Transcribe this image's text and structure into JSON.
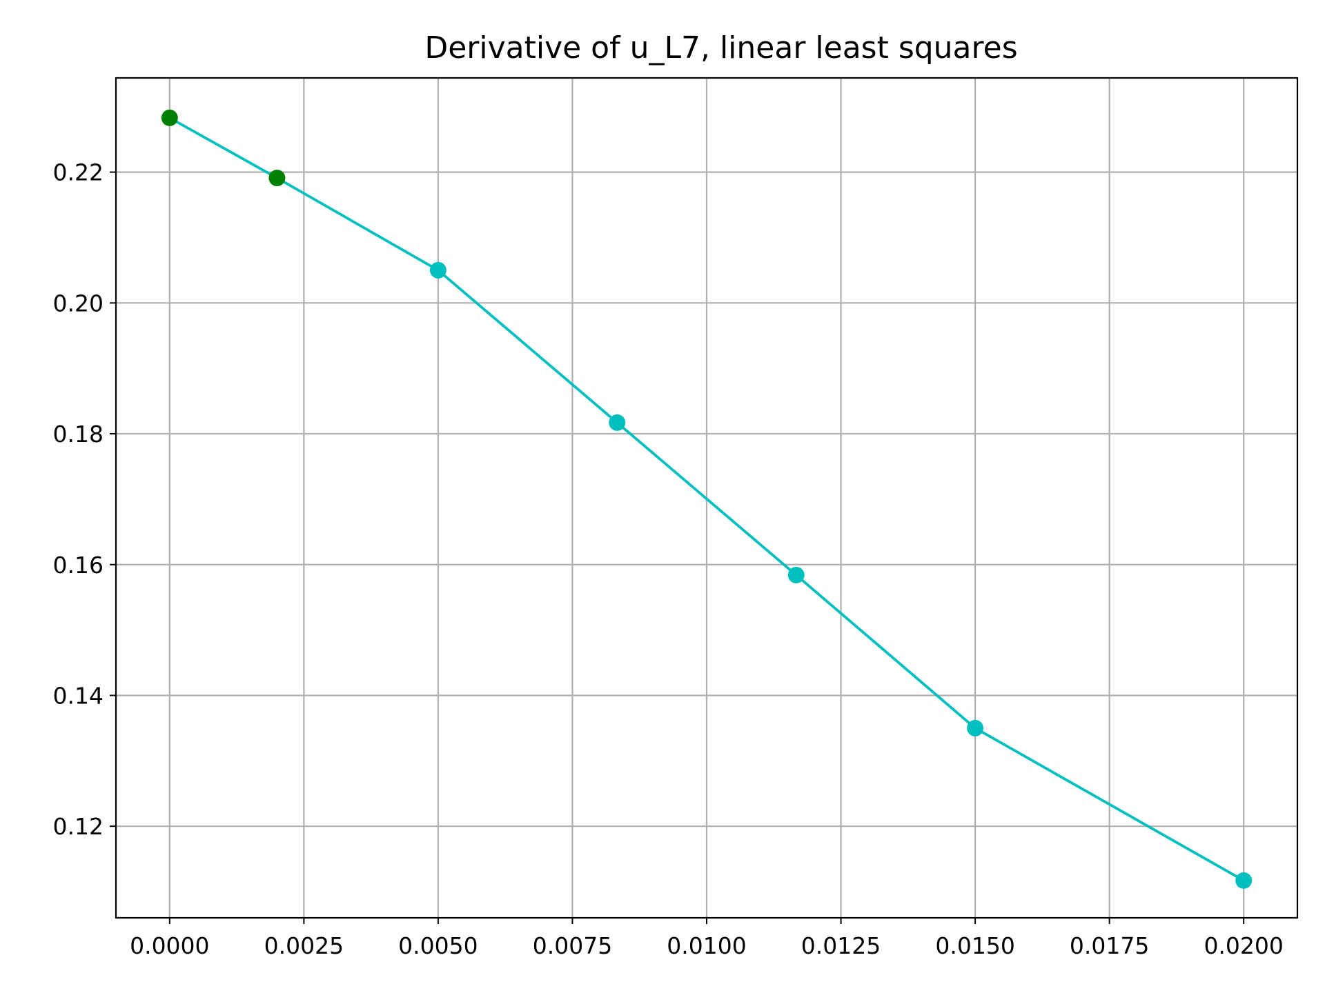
{
  "chart_data": {
    "type": "line",
    "title": "Derivative of u_L7, linear least squares",
    "xlabel": "",
    "ylabel": "",
    "xlim": [
      -0.001,
      0.021
    ],
    "ylim": [
      0.106,
      0.2344
    ],
    "grid": true,
    "xticks": [
      0.0,
      0.0025,
      0.005,
      0.0075,
      0.01,
      0.0125,
      0.015,
      0.0175,
      0.02
    ],
    "xtick_labels": [
      "0.0000",
      "0.0025",
      "0.0050",
      "0.0075",
      "0.0100",
      "0.0125",
      "0.0150",
      "0.0175",
      "0.0200"
    ],
    "yticks": [
      0.12,
      0.14,
      0.16,
      0.18,
      0.2,
      0.22
    ],
    "ytick_labels": [
      "0.12",
      "0.14",
      "0.16",
      "0.18",
      "0.20",
      "0.22"
    ],
    "series": [
      {
        "x": [
          0.0,
          0.002,
          0.005,
          0.008333,
          0.011667,
          0.015,
          0.02
        ],
        "y": [
          0.2283,
          0.2191,
          0.205,
          0.1817,
          0.1584,
          0.135,
          0.1117
        ],
        "line_color": "#00bfbf",
        "marker_colors": [
          "#008000",
          "#008000",
          "#00bfbf",
          "#00bfbf",
          "#00bfbf",
          "#00bfbf",
          "#00bfbf"
        ]
      }
    ]
  }
}
